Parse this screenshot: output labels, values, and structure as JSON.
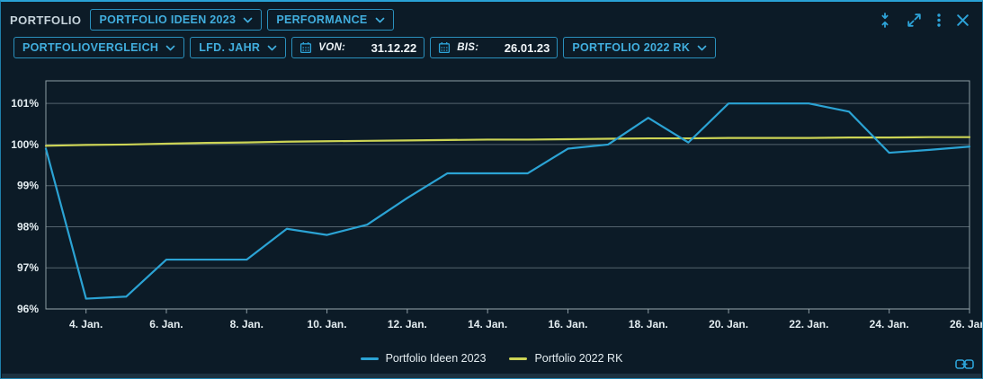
{
  "window": {
    "title": "PORTFOLIO"
  },
  "toolbar": {
    "portfolio_select": "PORTFOLIO IDEEN 2023",
    "view_select": "PERFORMANCE",
    "comparison_select": "PORTFOLIOVERGLEICH",
    "period_select": "LFD. JAHR",
    "date_from": {
      "label": "VON:",
      "value": "31.12.22"
    },
    "date_to": {
      "label": "BIS:",
      "value": "26.01.23"
    },
    "benchmark_select": "PORTFOLIO 2022 RK"
  },
  "icons": {
    "window_controls": [
      "collapse-vertical-icon",
      "maximize-icon",
      "kebab-menu-icon",
      "close-icon"
    ],
    "dropdown": "chevron-down-icon",
    "date_fields": "calendar-icon",
    "footer": "link-icon"
  },
  "colors": {
    "accent_cyan": "#2DA3D8",
    "series_blue": "#2BA3D4",
    "series_yellow": "#CCD455",
    "background": "#0C1B27",
    "grid": "#8FA0A8",
    "text": "#E8EFF2"
  },
  "chart_data": {
    "type": "line",
    "title": "",
    "xlabel": "",
    "ylabel": "",
    "grid": true,
    "legend_position": "bottom",
    "ylim": [
      96,
      101.55
    ],
    "y_ticks_percent": [
      96,
      97,
      98,
      99,
      100,
      101
    ],
    "x_label_suffix": ". Jan.",
    "x_days": [
      3,
      4,
      5,
      6,
      7,
      8,
      9,
      10,
      11,
      12,
      13,
      14,
      15,
      16,
      17,
      18,
      19,
      20,
      21,
      22,
      23,
      24,
      25,
      26
    ],
    "x_tick_days": [
      4,
      6,
      8,
      10,
      12,
      14,
      16,
      18,
      20,
      22,
      24,
      26
    ],
    "series": [
      {
        "name": "Portfolio Ideen 2023",
        "color": "#2BA3D4",
        "values": [
          99.9,
          96.25,
          96.3,
          97.2,
          97.2,
          97.2,
          97.95,
          97.8,
          98.05,
          98.7,
          99.3,
          99.3,
          99.3,
          99.9,
          100.0,
          100.65,
          100.05,
          101.0,
          101.0,
          101.0,
          100.8,
          99.8,
          99.87,
          99.95
        ]
      },
      {
        "name": "Portfolio 2022 RK",
        "color": "#CCD455",
        "values": [
          99.97,
          99.99,
          100.0,
          100.02,
          100.04,
          100.05,
          100.07,
          100.08,
          100.09,
          100.1,
          100.11,
          100.12,
          100.12,
          100.13,
          100.14,
          100.15,
          100.15,
          100.16,
          100.16,
          100.16,
          100.17,
          100.17,
          100.18,
          100.18
        ]
      }
    ]
  }
}
